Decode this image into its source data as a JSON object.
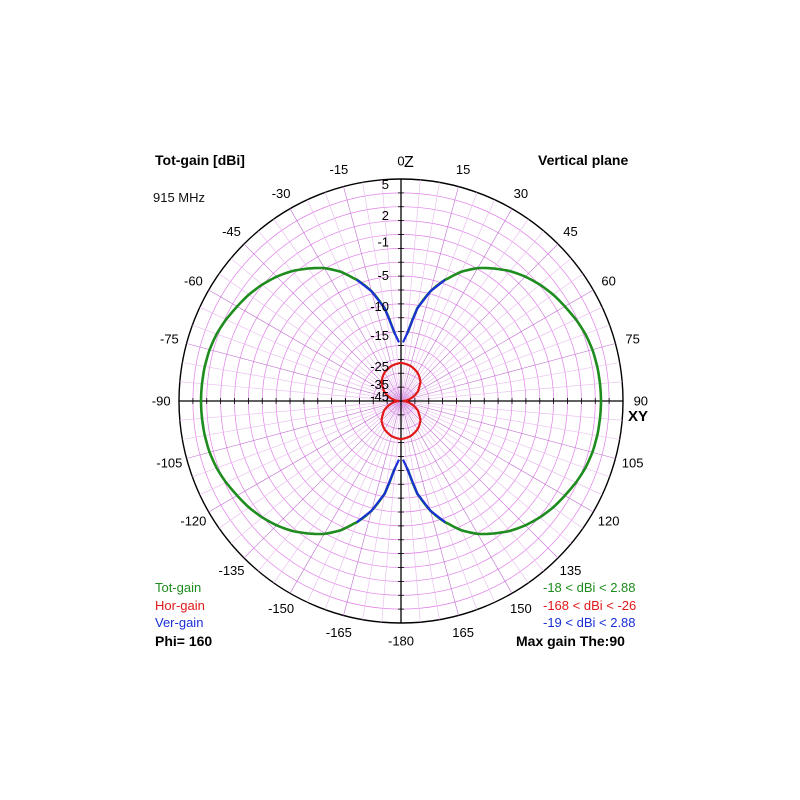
{
  "header": {
    "title": "Tot-gain [dBi]",
    "plane": "Vertical plane",
    "frequency": "915 MHz"
  },
  "axes": {
    "top_angle": "0",
    "top_axis": "Z",
    "right_angle": "90",
    "right_axis": "XY"
  },
  "legend": {
    "tot_label": "Tot-gain",
    "hor_label": "Hor-gain",
    "ver_label": "Ver-gain",
    "phi": "Phi= 160",
    "tot_range": "-18 < dBi < 2.88",
    "hor_range": "-168 < dBi < -26",
    "ver_range": "-19 < dBi < 2.88",
    "max_gain": "Max gain The:90"
  },
  "colors": {
    "tot": "#1e8c1e",
    "hor": "#e01818",
    "ver": "#1a2fd6",
    "grid": "#e080e8",
    "axis": "#000000"
  },
  "chart_data": {
    "type": "polar",
    "title": "Tot-gain [dBi]",
    "radial_labels": [
      "5",
      "2",
      "-1",
      "-5",
      "-10",
      "-15",
      "-25",
      "-35",
      "-45"
    ],
    "angle_labels": [
      {
        "deg": 0,
        "text": "0"
      },
      {
        "deg": 15,
        "text": "15"
      },
      {
        "deg": 30,
        "text": "30"
      },
      {
        "deg": 45,
        "text": "45"
      },
      {
        "deg": 60,
        "text": "60"
      },
      {
        "deg": 75,
        "text": "75"
      },
      {
        "deg": 90,
        "text": "90"
      },
      {
        "deg": 105,
        "text": "105"
      },
      {
        "deg": 120,
        "text": "120"
      },
      {
        "deg": 135,
        "text": "135"
      },
      {
        "deg": 150,
        "text": "150"
      },
      {
        "deg": 165,
        "text": "165"
      },
      {
        "deg": -15,
        "text": "-15"
      },
      {
        "deg": -30,
        "text": "-30"
      },
      {
        "deg": -45,
        "text": "-45"
      },
      {
        "deg": -60,
        "text": "-60"
      },
      {
        "deg": -75,
        "text": "-75"
      },
      {
        "deg": -90,
        "text": "-90"
      },
      {
        "deg": -105,
        "text": "-105"
      },
      {
        "deg": -120,
        "text": "-120"
      },
      {
        "deg": -135,
        "text": "-135"
      },
      {
        "deg": -150,
        "text": "-150"
      },
      {
        "deg": -165,
        "text": "-165"
      },
      {
        "deg": 180,
        "text": "-180"
      }
    ],
    "series": [
      {
        "name": "Tot-gain",
        "theta_deg": [
          5,
          10,
          15,
          20,
          25,
          30,
          35,
          40,
          45,
          50,
          55,
          60,
          65,
          70,
          75,
          80,
          85,
          90
        ],
        "gain_dbi": [
          -16.3,
          -11.0,
          -7.8,
          -5.3,
          -3.6,
          -2.3,
          -1.3,
          -0.4,
          0.3,
          0.9,
          1.4,
          1.8,
          2.2,
          2.5,
          2.7,
          2.8,
          2.85,
          2.88
        ],
        "symmetric": true
      },
      {
        "name": "Hor-gain",
        "theta_deg": [
          0,
          15,
          30,
          45,
          60,
          75,
          90
        ],
        "gain_dbi": [
          -26,
          -27,
          -29,
          -32,
          -37,
          -45,
          -168
        ],
        "symmetric": true
      },
      {
        "name": "Ver-gain",
        "theta_deg": [
          2,
          5,
          10,
          15,
          20
        ],
        "gain_dbi": [
          -19,
          -16.3,
          -11.0,
          -7.8,
          -5.3
        ],
        "symmetric": true
      }
    ]
  }
}
